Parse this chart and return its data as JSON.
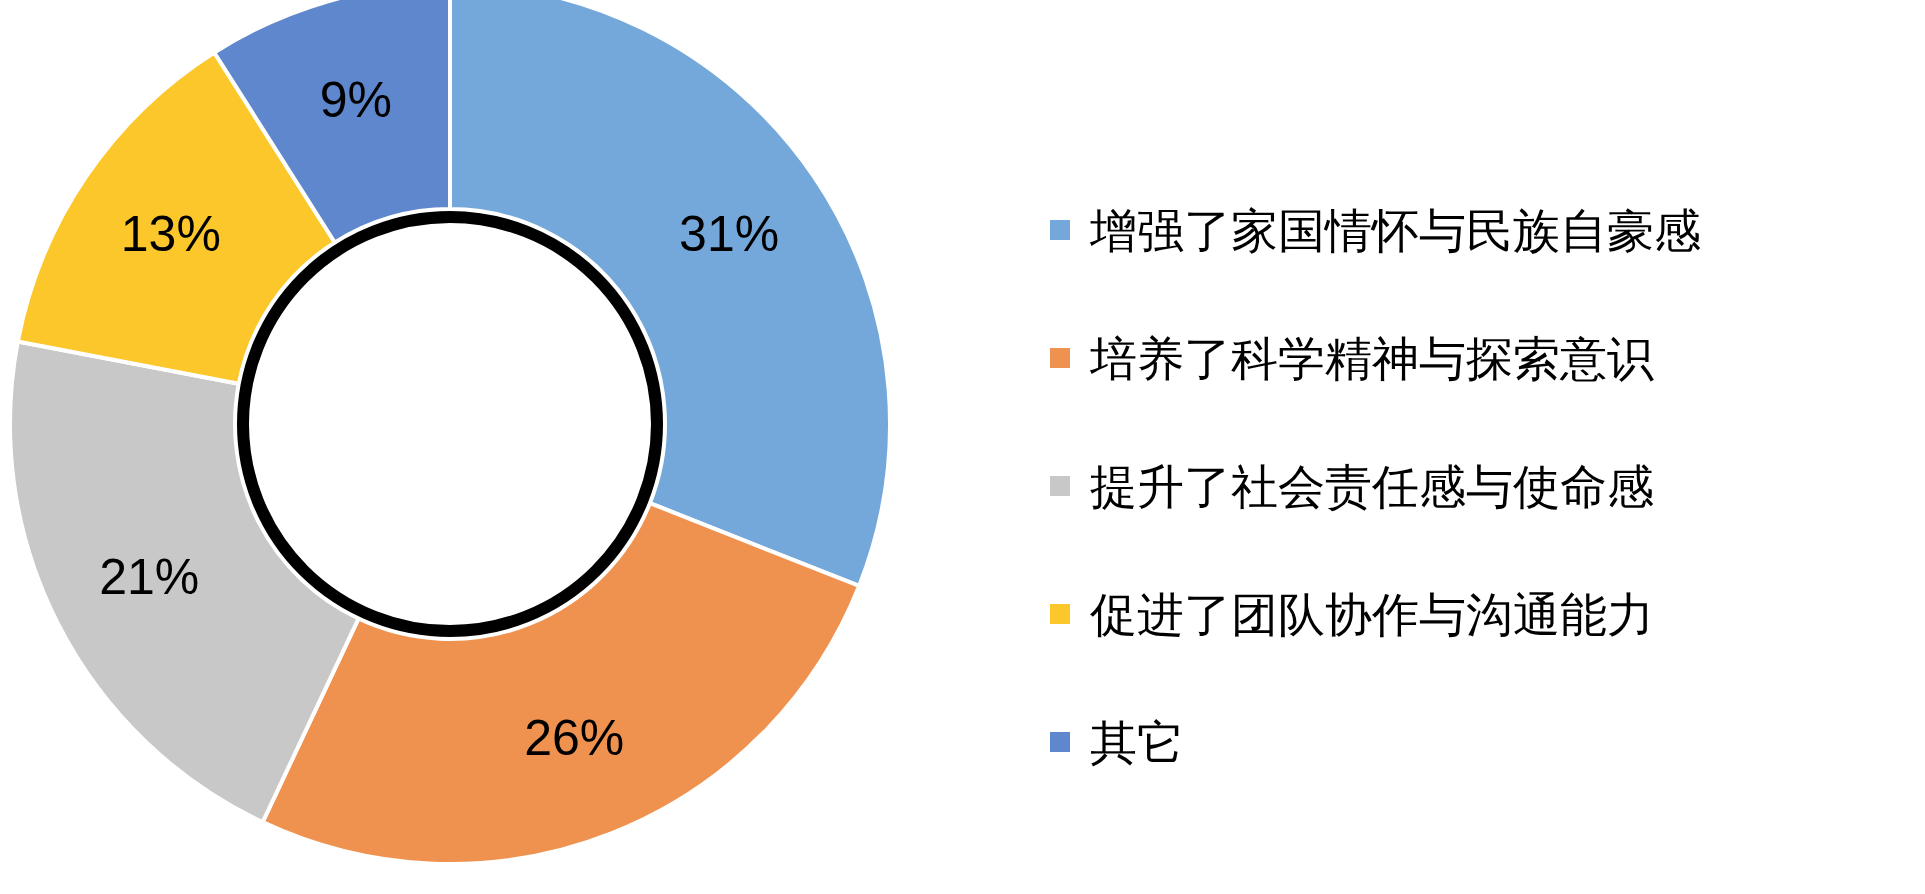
{
  "chart_data": {
    "type": "donut",
    "categories": [
      "增强了家国情怀与民族自豪感",
      "培养了科学精神与探索意识",
      "提升了社会责任感与使命感",
      "促进了团队协作与沟通能力",
      "其它"
    ],
    "values": [
      31,
      26,
      21,
      13,
      9
    ],
    "colors": [
      "#75a8da",
      "#f0924f",
      "#c8c8c8",
      "#fcc72a",
      "#5f87cd"
    ],
    "value_labels": [
      "31%",
      "26%",
      "21%",
      "13%",
      "9%"
    ],
    "legend": "right"
  }
}
